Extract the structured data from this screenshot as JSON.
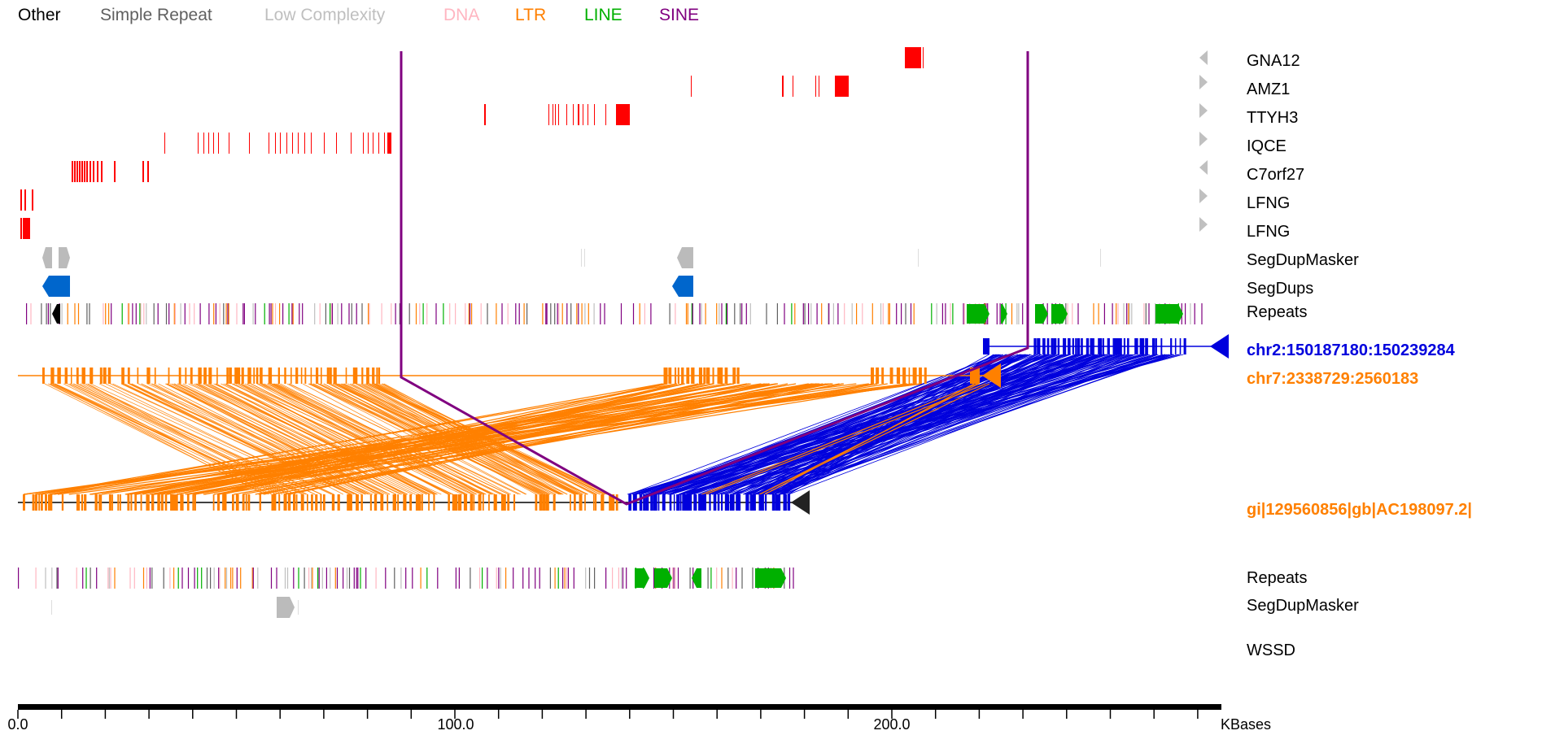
{
  "legend": [
    {
      "label": "Other",
      "color": "#000000"
    },
    {
      "label": "Simple Repeat",
      "color": "#606060"
    },
    {
      "label": "Low Complexity",
      "color": "#bfbfbf"
    },
    {
      "label": "DNA",
      "color": "#ffb6c1"
    },
    {
      "label": "LTR",
      "color": "#ff7f00"
    },
    {
      "label": "LINE",
      "color": "#00b000"
    },
    {
      "label": "SINE",
      "color": "#800080"
    }
  ],
  "gene_tracks": [
    {
      "label": "GNA12",
      "strand": "-"
    },
    {
      "label": "AMZ1",
      "strand": "+"
    },
    {
      "label": "TTYH3",
      "strand": "+"
    },
    {
      "label": "IQCE",
      "strand": "+"
    },
    {
      "label": "C7orf27",
      "strand": "-"
    },
    {
      "label": "LFNG",
      "strand": "+"
    },
    {
      "label": "LFNG",
      "strand": "+"
    }
  ],
  "annotation_tracks_top": [
    {
      "label": "SegDupMasker"
    },
    {
      "label": "SegDups"
    },
    {
      "label": "Repeats"
    }
  ],
  "sequences": {
    "chr2": {
      "label": "chr2:150187180:150239284",
      "color": "#0000dd"
    },
    "chr7": {
      "label": "chr7:2338729:2560183",
      "color": "#ff8000"
    },
    "query": {
      "label": "gi|129560856|gb|AC198097.2|",
      "color": "#ff8000"
    }
  },
  "annotation_tracks_bottom": [
    {
      "label": "Repeats"
    },
    {
      "label": "SegDupMasker"
    },
    {
      "label": "WSSD"
    }
  ],
  "scale": {
    "tick_labels": [
      "0.0",
      "100.0",
      "200.0"
    ],
    "unit": "KBases"
  },
  "colors": {
    "gene": "#ff0000",
    "segdup": "#0066cc",
    "segdupmasker": "#bbbbbb",
    "link": "#800080"
  }
}
